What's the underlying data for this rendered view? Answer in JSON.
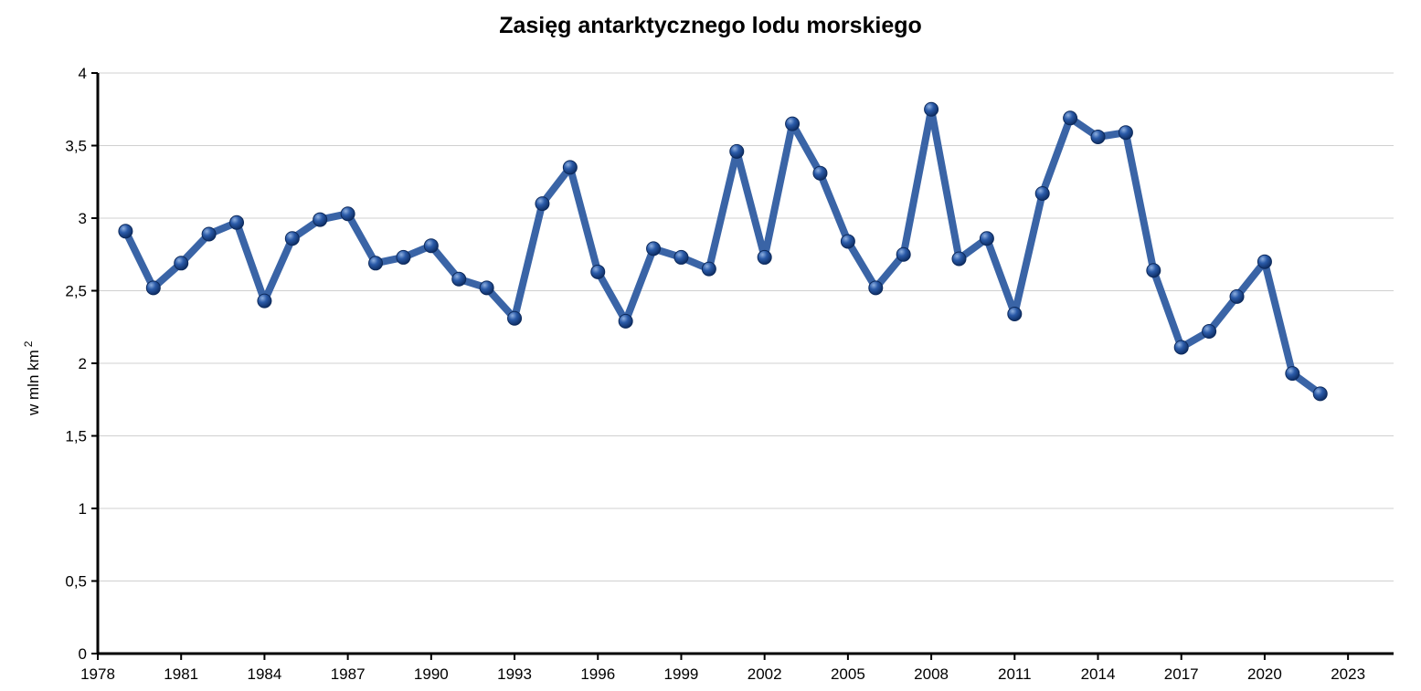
{
  "chart_data": {
    "type": "line",
    "title": "Zasięg antarktycznego lodu morskiego",
    "ylabel": "w mln km",
    "ylabel_superscript": "2",
    "xlabel": "",
    "xlim": [
      1978,
      1924
    ],
    "ylim": [
      0,
      4
    ],
    "grid": true,
    "legend": "none",
    "line_color": "#3a64a6",
    "marker_color": "#1f4a8a",
    "x_ticks": [
      1978,
      1981,
      1984,
      1987,
      1990,
      1993,
      1996,
      1999,
      2002,
      2005,
      2008,
      2011,
      2014,
      2017,
      2020,
      2023
    ],
    "y_ticks": [
      {
        "value": 0,
        "label": "0"
      },
      {
        "value": 0.5,
        "label": "0,5"
      },
      {
        "value": 1,
        "label": "1"
      },
      {
        "value": 1.5,
        "label": "1,5"
      },
      {
        "value": 2,
        "label": "2"
      },
      {
        "value": 2.5,
        "label": "2,5"
      },
      {
        "value": 3,
        "label": "3"
      },
      {
        "value": 3.5,
        "label": "3,5"
      },
      {
        "value": 4,
        "label": "4"
      }
    ],
    "x": [
      1979,
      1980,
      1981,
      1982,
      1983,
      1984,
      1985,
      1986,
      1987,
      1988,
      1989,
      1990,
      1991,
      1992,
      1993,
      1994,
      1995,
      1996,
      1997,
      1998,
      1999,
      2000,
      2001,
      2002,
      2003,
      2004,
      2005,
      2006,
      2007,
      2008,
      2009,
      2010,
      2011,
      2012,
      2013,
      2014,
      2015,
      2016,
      2017,
      2018,
      2019,
      2020,
      2021,
      2022
    ],
    "values": [
      2.91,
      2.52,
      2.69,
      2.89,
      2.97,
      2.43,
      2.86,
      2.99,
      3.03,
      2.69,
      2.73,
      2.81,
      2.58,
      2.52,
      2.31,
      3.1,
      3.35,
      2.63,
      2.29,
      2.79,
      2.73,
      2.65,
      3.46,
      2.73,
      3.65,
      3.31,
      2.84,
      2.52,
      2.75,
      3.75,
      2.72,
      2.86,
      2.34,
      3.17,
      3.69,
      3.56,
      3.59,
      2.64,
      2.11,
      2.22,
      2.46,
      2.7,
      1.93,
      1.79
    ]
  }
}
